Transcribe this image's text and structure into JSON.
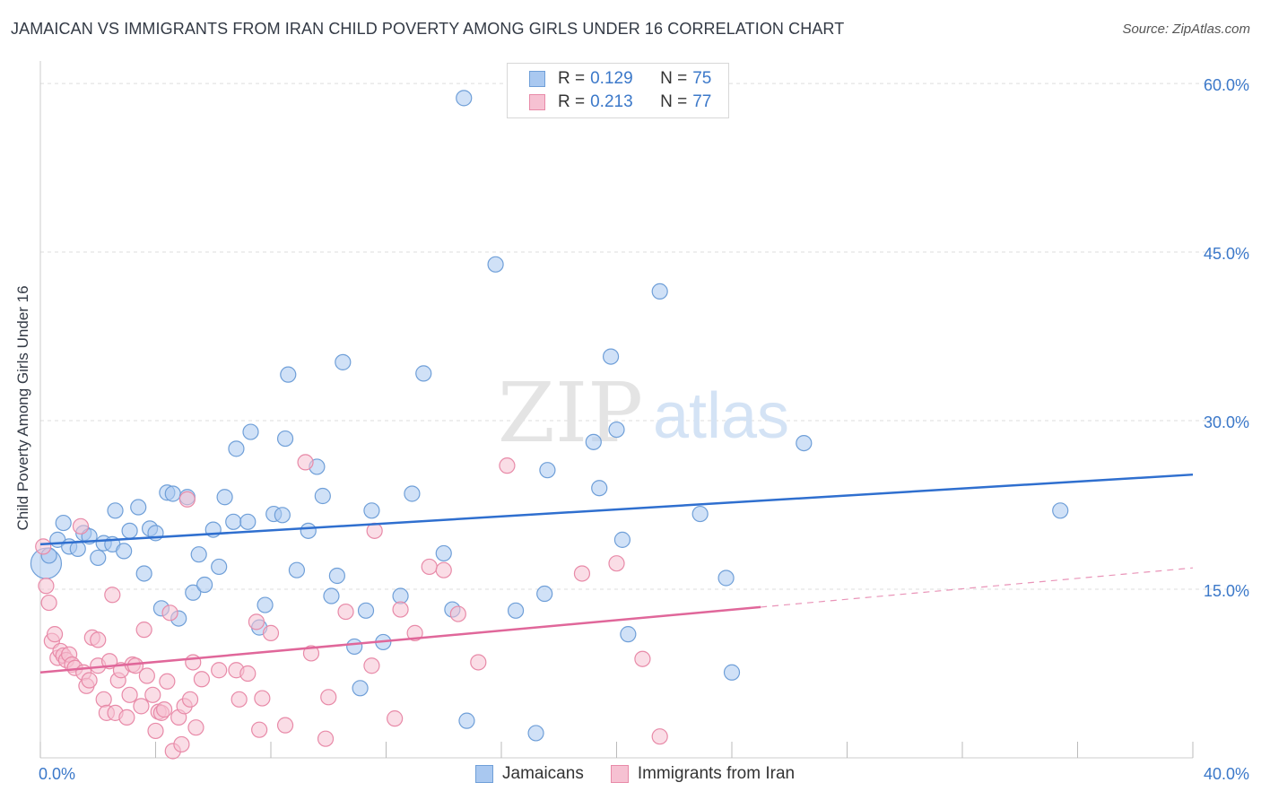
{
  "title": "JAMAICAN VS IMMIGRANTS FROM IRAN CHILD POVERTY AMONG GIRLS UNDER 16 CORRELATION CHART",
  "source": "Source: ZipAtlas.com",
  "watermark": {
    "zip": "ZIP",
    "atlas": "atlas"
  },
  "legend": {
    "rows": [
      {
        "r_label": "R =",
        "r_value": "0.129",
        "n_label": "N =",
        "n_value": "75",
        "color": "#a9c8f0",
        "border": "#6f9fd8"
      },
      {
        "r_label": "R =",
        "r_value": "0.213",
        "n_label": "N =",
        "n_value": "77",
        "color": "#f6c1d2",
        "border": "#e88aa8"
      }
    ]
  },
  "bottom_legend": [
    {
      "label": "Jamaicans",
      "color": "#a9c8f0",
      "border": "#6f9fd8"
    },
    {
      "label": "Immigrants from Iran",
      "color": "#f6c1d2",
      "border": "#e88aa8"
    }
  ],
  "chart_data": {
    "type": "scatter",
    "title": "JAMAICAN VS IMMIGRANTS FROM IRAN CHILD POVERTY AMONG GIRLS UNDER 16 CORRELATION CHART",
    "xlabel": "",
    "ylabel": "Child Poverty Among Girls Under 16",
    "xlim": [
      0,
      40
    ],
    "ylim": [
      0,
      62
    ],
    "x_tick_labels": [
      "0.0%",
      "40.0%"
    ],
    "y_ticks": [
      15,
      30,
      45,
      60
    ],
    "y_tick_labels": [
      "15.0%",
      "30.0%",
      "45.0%",
      "60.0%"
    ],
    "grid": true,
    "legend_position": "top-center",
    "series": [
      {
        "name": "Jamaicans",
        "color": "#6f9fd8",
        "fill": "#a9c8f0",
        "trend": {
          "x": [
            0,
            40
          ],
          "y": [
            19.0,
            25.2
          ],
          "color": "#2f6fcf",
          "dashed_from": null
        },
        "points": [
          [
            0.2,
            17.3
          ],
          [
            0.3,
            18.0
          ],
          [
            0.6,
            19.4
          ],
          [
            0.8,
            20.9
          ],
          [
            1.0,
            18.8
          ],
          [
            1.3,
            18.6
          ],
          [
            1.5,
            20.0
          ],
          [
            1.7,
            19.7
          ],
          [
            2.0,
            17.8
          ],
          [
            2.2,
            19.1
          ],
          [
            2.5,
            19.0
          ],
          [
            2.6,
            22.0
          ],
          [
            2.9,
            18.4
          ],
          [
            3.1,
            20.2
          ],
          [
            3.4,
            22.3
          ],
          [
            3.6,
            16.4
          ],
          [
            3.8,
            20.4
          ],
          [
            4.0,
            20.0
          ],
          [
            4.2,
            13.3
          ],
          [
            4.4,
            23.6
          ],
          [
            4.6,
            23.5
          ],
          [
            4.8,
            12.4
          ],
          [
            5.1,
            23.2
          ],
          [
            5.3,
            14.7
          ],
          [
            5.5,
            18.1
          ],
          [
            5.7,
            15.4
          ],
          [
            6.0,
            20.3
          ],
          [
            6.2,
            17.0
          ],
          [
            6.4,
            23.2
          ],
          [
            6.7,
            21.0
          ],
          [
            6.8,
            27.5
          ],
          [
            7.2,
            21.0
          ],
          [
            7.3,
            29.0
          ],
          [
            7.6,
            11.6
          ],
          [
            7.8,
            13.6
          ],
          [
            8.1,
            21.7
          ],
          [
            8.4,
            21.6
          ],
          [
            8.5,
            28.4
          ],
          [
            8.6,
            34.1
          ],
          [
            8.9,
            16.7
          ],
          [
            9.3,
            20.2
          ],
          [
            9.6,
            25.9
          ],
          [
            9.8,
            23.3
          ],
          [
            10.1,
            14.4
          ],
          [
            10.3,
            16.2
          ],
          [
            10.5,
            35.2
          ],
          [
            10.9,
            9.9
          ],
          [
            11.1,
            6.2
          ],
          [
            11.3,
            13.1
          ],
          [
            11.5,
            22.0
          ],
          [
            11.9,
            10.3
          ],
          [
            12.5,
            14.4
          ],
          [
            12.9,
            23.5
          ],
          [
            13.3,
            34.2
          ],
          [
            14.0,
            18.2
          ],
          [
            14.3,
            13.2
          ],
          [
            14.8,
            3.3
          ],
          [
            14.7,
            58.7
          ],
          [
            15.8,
            43.9
          ],
          [
            16.5,
            13.1
          ],
          [
            17.2,
            2.2
          ],
          [
            17.5,
            14.6
          ],
          [
            17.6,
            25.6
          ],
          [
            19.2,
            28.1
          ],
          [
            19.4,
            24.0
          ],
          [
            19.8,
            35.7
          ],
          [
            20.0,
            29.2
          ],
          [
            20.2,
            19.4
          ],
          [
            20.4,
            11.0
          ],
          [
            21.5,
            41.5
          ],
          [
            22.9,
            21.7
          ],
          [
            23.8,
            16.0
          ],
          [
            24.0,
            7.6
          ],
          [
            26.5,
            28.0
          ],
          [
            35.4,
            22.0
          ]
        ]
      },
      {
        "name": "Immigrants from Iran",
        "color": "#e88aa8",
        "fill": "#f6c1d2",
        "trend": {
          "x": [
            0,
            40
          ],
          "y": [
            7.6,
            16.9
          ],
          "color": "#e0679a",
          "dashed_from": 25.0
        },
        "points": [
          [
            0.1,
            18.8
          ],
          [
            0.2,
            15.3
          ],
          [
            0.3,
            13.8
          ],
          [
            0.4,
            10.4
          ],
          [
            0.5,
            11.0
          ],
          [
            0.6,
            8.9
          ],
          [
            0.7,
            9.5
          ],
          [
            0.8,
            9.1
          ],
          [
            0.9,
            8.7
          ],
          [
            1.0,
            9.2
          ],
          [
            1.1,
            8.3
          ],
          [
            1.2,
            8.0
          ],
          [
            1.4,
            20.6
          ],
          [
            1.5,
            7.6
          ],
          [
            1.6,
            6.4
          ],
          [
            1.7,
            6.9
          ],
          [
            1.8,
            10.7
          ],
          [
            2.0,
            10.5
          ],
          [
            2.0,
            8.2
          ],
          [
            2.2,
            5.2
          ],
          [
            2.3,
            4.0
          ],
          [
            2.4,
            8.6
          ],
          [
            2.5,
            14.5
          ],
          [
            2.6,
            4.0
          ],
          [
            2.7,
            6.9
          ],
          [
            2.8,
            7.8
          ],
          [
            3.0,
            3.6
          ],
          [
            3.1,
            5.6
          ],
          [
            3.2,
            8.3
          ],
          [
            3.3,
            8.2
          ],
          [
            3.5,
            4.6
          ],
          [
            3.6,
            11.4
          ],
          [
            3.7,
            7.3
          ],
          [
            3.9,
            5.6
          ],
          [
            4.0,
            2.4
          ],
          [
            4.1,
            4.1
          ],
          [
            4.2,
            4.0
          ],
          [
            4.3,
            4.3
          ],
          [
            4.4,
            6.8
          ],
          [
            4.5,
            12.9
          ],
          [
            4.6,
            0.6
          ],
          [
            4.8,
            3.6
          ],
          [
            4.9,
            1.2
          ],
          [
            5.0,
            4.6
          ],
          [
            5.1,
            23.0
          ],
          [
            5.2,
            5.2
          ],
          [
            5.3,
            8.5
          ],
          [
            5.4,
            2.7
          ],
          [
            5.6,
            7.0
          ],
          [
            6.2,
            7.8
          ],
          [
            6.8,
            7.8
          ],
          [
            6.9,
            5.2
          ],
          [
            7.2,
            7.5
          ],
          [
            7.5,
            12.1
          ],
          [
            7.7,
            5.3
          ],
          [
            8.0,
            11.1
          ],
          [
            7.6,
            2.5
          ],
          [
            8.5,
            2.9
          ],
          [
            9.2,
            26.3
          ],
          [
            9.4,
            9.3
          ],
          [
            9.9,
            1.7
          ],
          [
            10.0,
            5.4
          ],
          [
            10.6,
            13.0
          ],
          [
            11.5,
            8.2
          ],
          [
            11.6,
            20.2
          ],
          [
            12.3,
            3.5
          ],
          [
            12.5,
            13.2
          ],
          [
            13.0,
            11.1
          ],
          [
            13.5,
            17.0
          ],
          [
            14.0,
            16.7
          ],
          [
            14.5,
            12.8
          ],
          [
            15.2,
            8.5
          ],
          [
            16.2,
            26.0
          ],
          [
            18.8,
            16.4
          ],
          [
            20.0,
            17.3
          ],
          [
            20.9,
            8.8
          ],
          [
            21.5,
            1.9
          ]
        ]
      }
    ]
  }
}
